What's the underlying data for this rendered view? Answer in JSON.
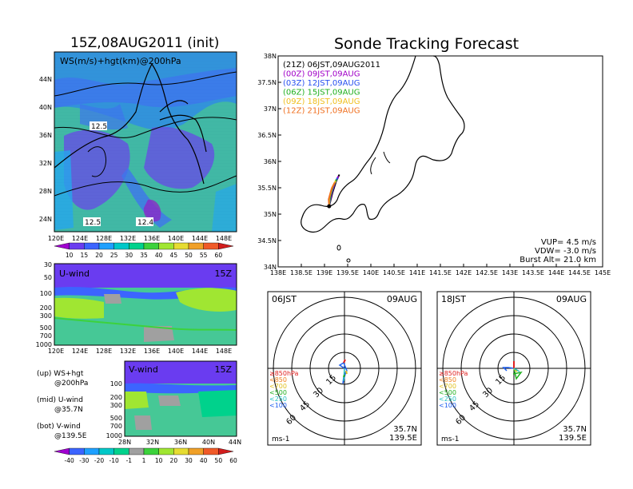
{
  "left": {
    "title": "15Z,08AUG2011 (init)",
    "map": {
      "label": "WS(m/s)+hgt(km)@200hPa",
      "lat_ticks": [
        "44N",
        "40N",
        "36N",
        "32N",
        "28N",
        "24N"
      ],
      "lon_ticks": [
        "120E",
        "124E",
        "128E",
        "132E",
        "136E",
        "140E",
        "144E",
        "148E"
      ],
      "contour_labels": [
        "12.5",
        "12.5",
        "12.4"
      ]
    },
    "colorbar_ws": {
      "ticks": [
        "10",
        "15",
        "20",
        "25",
        "30",
        "35",
        "40",
        "45",
        "50",
        "55",
        "60"
      ],
      "colors": [
        "#a000d0",
        "#6a3cf0",
        "#3c64ff",
        "#1ea0ff",
        "#00c8c8",
        "#00d28c",
        "#3cd23c",
        "#a0e632",
        "#e6dc32",
        "#f0a028",
        "#f05a28",
        "#d21e1e"
      ]
    },
    "u_panel": {
      "label": "U-wind",
      "time": "15Z",
      "p_ticks": [
        "30",
        "50",
        "100",
        "200",
        "300",
        "500",
        "700",
        "1000"
      ],
      "lon_ticks": [
        "120E",
        "124E",
        "128E",
        "132E",
        "136E",
        "140E",
        "144E",
        "148E"
      ]
    },
    "v_panel": {
      "label": "V-wind",
      "time": "15Z",
      "p_ticks": [
        "100",
        "200",
        "300",
        "500",
        "700",
        "1000"
      ],
      "lat_ticks": [
        "28N",
        "32N",
        "36N",
        "40N",
        "44N"
      ]
    },
    "legend": [
      {
        "a": "(up) WS+hgt",
        "b": "@200hPa"
      },
      {
        "a": "(mid) U-wind",
        "b": "@35.7N"
      },
      {
        "a": "(bot) V-wind",
        "b": "@139.5E"
      }
    ],
    "colorbar_uv": {
      "ticks": [
        "-40",
        "-30",
        "-20",
        "-10",
        "-1",
        "1",
        "10",
        "20",
        "30",
        "40",
        "50",
        "60"
      ],
      "colors": [
        "#a000d0",
        "#3c64ff",
        "#1ea0ff",
        "#00c8c8",
        "#00d28c",
        "#a0a0a0",
        "#3cd23c",
        "#a0e632",
        "#e6dc32",
        "#f0a028",
        "#f05a28",
        "#d21e1e"
      ]
    }
  },
  "right": {
    "title": "Sonde Tracking Forecast",
    "track": {
      "lat_ticks": [
        "38N",
        "37.5N",
        "37N",
        "36.5N",
        "36N",
        "35.5N",
        "35N",
        "34.5N",
        "34N"
      ],
      "lon_ticks": [
        "138E",
        "138.5E",
        "139E",
        "139.5E",
        "140E",
        "140.5E",
        "141E",
        "141.5E",
        "142E",
        "142.5E",
        "143E",
        "143.5E",
        "144E",
        "144.5E",
        "145E"
      ],
      "times": [
        {
          "z": "(21Z)",
          "jst": "06JST,09AUG2011",
          "color": "#000000"
        },
        {
          "z": "(00Z)",
          "jst": "09JST,09AUG",
          "color": "#a000c8"
        },
        {
          "z": "(03Z)",
          "jst": "12JST,09AUG",
          "color": "#2850f0"
        },
        {
          "z": "(06Z)",
          "jst": "15JST,09AUG",
          "color": "#20b020"
        },
        {
          "z": "(09Z)",
          "jst": "18JST,09AUG",
          "color": "#f0c020"
        },
        {
          "z": "(12Z)",
          "jst": "21JST,09AUG",
          "color": "#f07020"
        }
      ],
      "params": [
        "VUP= 4.5 m/s",
        "VDW= -3.0 m/s",
        "Burst Alt= 21.0 km"
      ]
    },
    "hodo_left": {
      "time": "06JST",
      "date": "09AUG",
      "loc1": "35.7N",
      "loc2": "139.5E",
      "unit": "ms-1",
      "ring_labels": [
        "15",
        "30",
        "45",
        "60"
      ]
    },
    "hodo_right": {
      "time": "18JST",
      "date": "09AUG",
      "loc1": "35.7N",
      "loc2": "139.5E",
      "unit": "ms-1",
      "ring_labels": [
        "15",
        "30",
        "45",
        "60"
      ]
    },
    "hodo_legend": [
      {
        "t": "≥850hPa",
        "color": "#e02020"
      },
      {
        "t": "<850",
        "color": "#f08020"
      },
      {
        "t": "<700",
        "color": "#e0c020"
      },
      {
        "t": "<500",
        "color": "#20b020"
      },
      {
        "t": "<250",
        "color": "#20c0c0"
      },
      {
        "t": "<100",
        "color": "#2060f0"
      }
    ]
  },
  "chart_data": [
    {
      "type": "heatmap",
      "title": "15Z,08AUG2011 (init)",
      "variable": "WS(m/s)+hgt(km)@200hPa",
      "xlim": [
        "120E",
        "150E"
      ],
      "ylim": [
        "22N",
        "48N"
      ],
      "contour_labels_km": [
        12.5,
        12.5,
        12.4
      ],
      "colorbar_ticks": [
        10,
        15,
        20,
        25,
        30,
        35,
        40,
        45,
        50,
        55,
        60
      ]
    },
    {
      "type": "heatmap",
      "title": "U-wind 15Z",
      "variable": "U-wind @35.7N",
      "x": [
        "120E",
        "124E",
        "128E",
        "132E",
        "136E",
        "140E",
        "144E",
        "148E"
      ],
      "y_pressure_hPa": [
        30,
        50,
        100,
        200,
        300,
        500,
        700,
        1000
      ]
    },
    {
      "type": "heatmap",
      "title": "V-wind 15Z",
      "variable": "V-wind @139.5E",
      "x": [
        "28N",
        "32N",
        "36N",
        "40N",
        "44N"
      ],
      "y_pressure_hPa": [
        100,
        200,
        300,
        500,
        700,
        1000
      ],
      "colorbar_ticks": [
        -40,
        -30,
        -20,
        -10,
        -1,
        1,
        10,
        20,
        30,
        40,
        50,
        60
      ]
    },
    {
      "type": "line",
      "title": "Sonde Tracking Forecast",
      "xlim": [
        138,
        145
      ],
      "ylim": [
        34,
        38
      ],
      "launch": {
        "lon": 139.1,
        "lat": 35.15
      },
      "series": [
        {
          "name": "(21Z) 06JST,09AUG2011",
          "points": [
            [
              139.1,
              35.15
            ],
            [
              139.17,
              35.4
            ],
            [
              139.25,
              35.62
            ],
            [
              139.32,
              35.75
            ]
          ]
        },
        {
          "name": "(00Z) 09JST,09AUG",
          "points": [
            [
              139.1,
              35.15
            ],
            [
              139.15,
              35.38
            ],
            [
              139.22,
              35.58
            ],
            [
              139.3,
              35.72
            ]
          ]
        },
        {
          "name": "(03Z) 12JST,09AUG",
          "points": [
            [
              139.1,
              35.15
            ],
            [
              139.13,
              35.35
            ],
            [
              139.2,
              35.55
            ],
            [
              139.28,
              35.69
            ]
          ]
        },
        {
          "name": "(06Z) 15JST,09AUG",
          "points": [
            [
              139.1,
              35.15
            ],
            [
              139.12,
              35.33
            ],
            [
              139.18,
              35.52
            ],
            [
              139.26,
              35.66
            ]
          ]
        },
        {
          "name": "(09Z) 18JST,09AUG",
          "points": [
            [
              139.1,
              35.15
            ],
            [
              139.1,
              35.3
            ],
            [
              139.16,
              35.5
            ],
            [
              139.24,
              35.63
            ]
          ]
        },
        {
          "name": "(12Z) 21JST,09AUG",
          "points": [
            [
              139.1,
              35.15
            ],
            [
              139.09,
              35.28
            ],
            [
              139.15,
              35.47
            ],
            [
              139.22,
              35.6
            ]
          ]
        }
      ]
    }
  ]
}
